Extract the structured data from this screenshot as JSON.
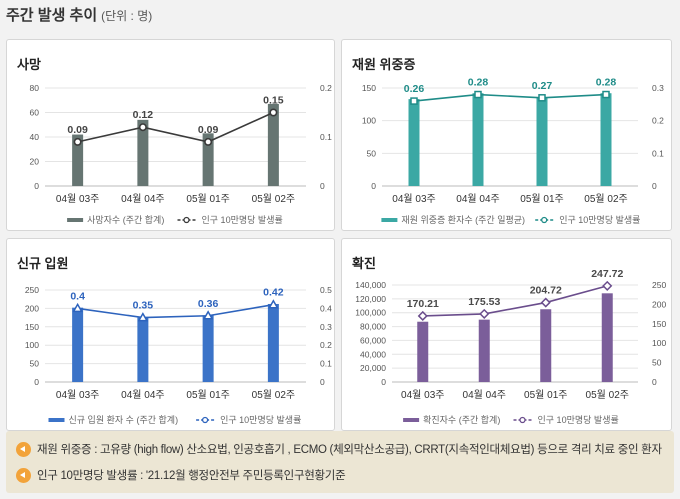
{
  "header": {
    "title": "주간 발생 추이",
    "unit": "(단위 : 명)"
  },
  "chart_data": [
    {
      "type": "bar+line",
      "title": "사망",
      "categories": [
        "04월 03주",
        "04월 04주",
        "05월 01주",
        "05월 02주"
      ],
      "bars": {
        "name": "사망자수 (주간 합계)",
        "values": [
          42,
          54,
          43,
          67
        ]
      },
      "line": {
        "name": "인구 10만명당 발생률",
        "values": [
          0.09,
          0.12,
          0.09,
          0.15
        ],
        "labels": [
          "0.09",
          "0.12",
          "0.09",
          "0.15"
        ]
      },
      "left_ticks": [
        "0",
        "20",
        "40",
        "60",
        "80"
      ],
      "ylim_left": [
        0,
        80
      ],
      "right_ticks": [
        "0",
        "0.1",
        "0.2"
      ],
      "ylim_right": [
        0,
        0.2
      ],
      "colors": {
        "bar": "#667572",
        "line": "#3a3a3a",
        "label": "#444444"
      }
    },
    {
      "type": "bar+line",
      "title": "재원 위중증",
      "categories": [
        "04월 03주",
        "04월 04주",
        "05월 01주",
        "05월 02주"
      ],
      "bars": {
        "name": "재원 위중증 환자수 (주간 일평균)",
        "values": [
          133,
          142,
          136,
          142
        ]
      },
      "line": {
        "name": "인구 10만명당 발생률",
        "values": [
          0.26,
          0.28,
          0.27,
          0.28
        ],
        "labels": [
          "0.26",
          "0.28",
          "0.27",
          "0.28"
        ]
      },
      "left_ticks": [
        "0",
        "50",
        "100",
        "150"
      ],
      "ylim_left": [
        0,
        150
      ],
      "right_ticks": [
        "0",
        "0.1",
        "0.2",
        "0.3"
      ],
      "ylim_right": [
        0,
        0.3
      ],
      "colors": {
        "bar": "#3ba8a4",
        "line": "#1f8c88",
        "label": "#1f8c88"
      }
    },
    {
      "type": "bar+line",
      "title": "신규 입원",
      "categories": [
        "04월 03주",
        "04월 04주",
        "05월 01주",
        "05월 02주"
      ],
      "bars": {
        "name": "신규 입원 환자 수 (주간 합계)",
        "values": [
          202,
          175,
          181,
          212
        ]
      },
      "line": {
        "name": "인구 10만명당 발생률",
        "values": [
          0.4,
          0.35,
          0.36,
          0.42
        ],
        "labels": [
          "0.4",
          "0.35",
          "0.36",
          "0.42"
        ]
      },
      "left_ticks": [
        "0",
        "50",
        "100",
        "150",
        "200",
        "250"
      ],
      "ylim_left": [
        0,
        250
      ],
      "right_ticks": [
        "0",
        "0.1",
        "0.2",
        "0.3",
        "0.4",
        "0.5"
      ],
      "ylim_right": [
        0,
        0.5
      ],
      "colors": {
        "bar": "#3b73c8",
        "line": "#2d63bd",
        "label": "#2d63bd"
      }
    },
    {
      "type": "bar+line",
      "title": "확진",
      "categories": [
        "04월 03주",
        "04월 04주",
        "05월 01주",
        "05월 02주"
      ],
      "bars": {
        "name": "확진자수 (주간 합계)",
        "values": [
          87000,
          90000,
          105000,
          128000
        ]
      },
      "line": {
        "name": "인구 10만명당 발생률",
        "values": [
          170.21,
          175.53,
          204.72,
          247.72
        ],
        "labels": [
          "170.21",
          "175.53",
          "204.72",
          "247.72"
        ]
      },
      "left_ticks": [
        "0",
        "20,000",
        "40,000",
        "60,000",
        "80,000",
        "100,000",
        "120,000",
        "140,000"
      ],
      "ylim_left": [
        0,
        140000
      ],
      "right_ticks": [
        "0",
        "50",
        "100",
        "150",
        "200",
        "250"
      ],
      "ylim_right": [
        0,
        250
      ],
      "colors": {
        "bar": "#7b5e9a",
        "line": "#6a4d8c",
        "label": "#4a4a4a"
      }
    }
  ],
  "notes": [
    "재원 위중증 : 고유량 (high flow) 산소요법, 인공호흡기 , ECMO (체외막산소공급), CRRT(지속적인대체요법) 등으로 격리 치료 중인 환자",
    "인구 10만명당 발생률 : '21.12월 행정안전부 주민등록인구현황기준"
  ]
}
